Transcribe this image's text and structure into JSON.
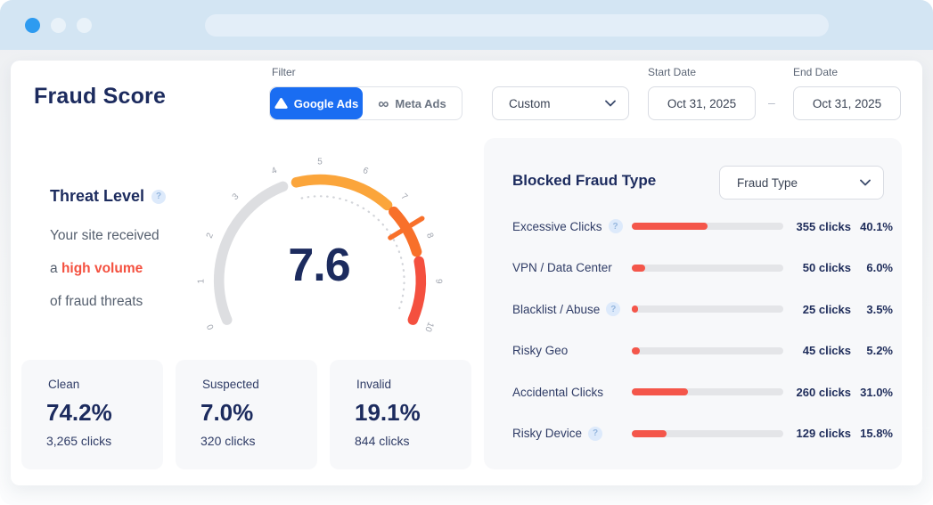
{
  "colors": {
    "accent_blue": "#1a6df2",
    "navy": "#1c2b5e",
    "red": "#f4503f",
    "amber": "#fba53b",
    "orange": "#f8702a",
    "gauge_gray": "#dddee1",
    "bar_fill": "#f4564a",
    "bar_track": "#e4e5e8",
    "chrome_bg": "#d3e5f3",
    "active_dot": "#2e9bf0",
    "inactive_dot": "#e9f2f9",
    "panel_bg": "#f7f8fa"
  },
  "header": {
    "title": "Fraud Score",
    "filter_label": "Filter",
    "google_ads_label": "Google Ads",
    "meta_ads_label": "Meta Ads",
    "range_value": "Custom",
    "start_date_label": "Start Date",
    "start_date_value": "Oct 31, 2025",
    "date_separator": "–",
    "end_date_label": "End Date",
    "end_date_value": "Oct 31, 2025"
  },
  "threat": {
    "heading": "Threat Level",
    "help_glyph": "?",
    "line1": "Your site received",
    "line2_prefix": "a ",
    "line2_highlight": "high volume",
    "line3": "of fraud threats",
    "score": "7.6"
  },
  "stats": [
    {
      "label": "Clean",
      "pct": "74.2%",
      "clicks": "3,265 clicks"
    },
    {
      "label": "Suspected",
      "pct": "7.0%",
      "clicks": "320 clicks"
    },
    {
      "label": "Invalid",
      "pct": "19.1%",
      "clicks": "844 clicks"
    }
  ],
  "blocked": {
    "heading": "Blocked Fraud Type",
    "dropdown_value": "Fraud Type",
    "rows": [
      {
        "label": "Excessive Clicks",
        "help": true,
        "clicks": "355 clicks",
        "pct": "40.1%",
        "bar_pct": 50
      },
      {
        "label": "VPN / Data Center",
        "help": false,
        "clicks": "50 clicks",
        "pct": "6.0%",
        "bar_pct": 9
      },
      {
        "label": "Blacklist / Abuse",
        "help": true,
        "clicks": "25 clicks",
        "pct": "3.5%",
        "bar_pct": 4
      },
      {
        "label": "Risky Geo",
        "help": false,
        "clicks": "45 clicks",
        "pct": "5.2%",
        "bar_pct": 5
      },
      {
        "label": "Accidental Clicks",
        "help": false,
        "clicks": "260 clicks",
        "pct": "31.0%",
        "bar_pct": 37
      },
      {
        "label": "Risky Device",
        "help": true,
        "clicks": "129 clicks",
        "pct": "15.8%",
        "bar_pct": 23
      }
    ]
  },
  "chart_data": [
    {
      "type": "gauge",
      "title": "Threat Level",
      "value": 7.6,
      "min": 0,
      "max": 10,
      "tick_labels": [
        "0",
        "1",
        "2",
        "3",
        "4",
        "5",
        "6",
        "7",
        "8",
        "9",
        "10"
      ],
      "segments": [
        {
          "from": 0,
          "to": 4.05,
          "color": "#dddee1"
        },
        {
          "from": 4.4,
          "to": 6.85,
          "color": "#fba53b"
        },
        {
          "from": 7.08,
          "to": 8.25,
          "color": "#f8702a"
        },
        {
          "from": 8.5,
          "to": 10,
          "color": "#f4503f"
        }
      ],
      "dotted_arc": {
        "from": 4.45,
        "to": 9.95
      },
      "needle": {
        "value": 7.6,
        "color": "#f8702a"
      }
    },
    {
      "type": "bar",
      "title": "Blocked Fraud Type",
      "orientation": "horizontal",
      "categories": [
        "Excessive Clicks",
        "VPN / Data Center",
        "Blacklist / Abuse",
        "Risky Geo",
        "Accidental Clicks",
        "Risky Device"
      ],
      "series": [
        {
          "name": "clicks",
          "values": [
            355,
            50,
            25,
            45,
            260,
            129
          ]
        },
        {
          "name": "percent",
          "values": [
            40.1,
            6.0,
            3.5,
            5.2,
            31.0,
            15.8
          ]
        }
      ],
      "bar_color": "#f4564a"
    }
  ]
}
